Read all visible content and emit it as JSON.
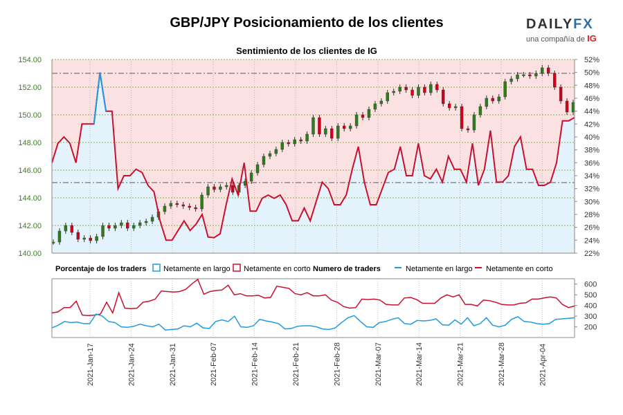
{
  "title": "GBP/JPY Posicionamiento de los clientes",
  "logo": {
    "brand_main": "DAILY",
    "brand_fx": "FX",
    "tagline": "una compañía de",
    "tagline_brand": "IG"
  },
  "chart_data": {
    "type": "line",
    "title": "Sentimiento de los clientes de IG",
    "price_axis": {
      "min": 140,
      "max": 154,
      "ticks": [
        "140.00",
        "142.00",
        "144.00",
        "146.00",
        "148.00",
        "150.00",
        "152.00",
        "154.00"
      ]
    },
    "pct_axis": {
      "min": 22,
      "max": 52,
      "ticks": [
        "22%",
        "24%",
        "26%",
        "28%",
        "30%",
        "32%",
        "34%",
        "36%",
        "38%",
        "40%",
        "42%",
        "44%",
        "46%",
        "48%",
        "50%",
        "52%"
      ]
    },
    "traders_axis": {
      "min": 100,
      "max": 650,
      "ticks": [
        "200",
        "300",
        "400",
        "500",
        "600"
      ]
    },
    "ref_lines": [
      153.0,
      145.1
    ],
    "legend_pct": {
      "title": "Porcentaje de los traders",
      "long": "Netamente en largo",
      "short": "Netamente en corto"
    },
    "legend_traders": {
      "title": "Numero de traders",
      "long": "Netamente en largo",
      "short": "Netamente en corto"
    },
    "colors": {
      "long": "#1e9be0",
      "short": "#c8102e",
      "up": "#2e7d1b",
      "down": "#d0021b",
      "long_bg": "#e4f2fb",
      "short_bg": "#fbe1e1"
    },
    "x_labels": [
      "2021-Jan-17",
      "2021-Jan-24",
      "2021-Jan-31",
      "2021-Feb-07",
      "2021-Feb-14",
      "2021-Feb-21",
      "2021-Feb-28",
      "2021-Mar-07",
      "2021-Mar-14",
      "2021-Mar-21",
      "2021-Mar-28",
      "2021-Apr-04"
    ],
    "net_short_pct": [
      36,
      39,
      40,
      39,
      36,
      42,
      42,
      42,
      50,
      44,
      44,
      32,
      34,
      34,
      35,
      34.5,
      32.5,
      31.5,
      27,
      24,
      24,
      25.5,
      27,
      25.5,
      26.5,
      28,
      24.5,
      24.4,
      25,
      29.5,
      33.5,
      31,
      36,
      28.5,
      28.5,
      30.5,
      31,
      30.5,
      31,
      29.5,
      27,
      27,
      29,
      27,
      30,
      33,
      32,
      29.5,
      29.5,
      31,
      35,
      38.5,
      33,
      29.5,
      29.5,
      32,
      34.5,
      35,
      38.5,
      34,
      34,
      39,
      34,
      33.5,
      35,
      33,
      37,
      35,
      35,
      33,
      39,
      32.5,
      35,
      41,
      33,
      33,
      34,
      38.5,
      40,
      35,
      35,
      32.5,
      32.5,
      33,
      36,
      42.5,
      42.5,
      43
    ],
    "long_count": [
      190,
      215,
      250,
      240,
      245,
      230,
      230,
      320,
      300,
      250,
      240,
      200,
      195,
      205,
      225,
      210,
      200,
      225,
      170,
      175,
      180,
      210,
      200,
      235,
      190,
      185,
      250,
      265,
      250,
      300,
      200,
      195,
      210,
      270,
      255,
      245,
      230,
      180,
      185,
      205,
      210,
      210,
      200,
      180,
      175,
      190,
      240,
      285,
      305,
      250,
      200,
      195,
      240,
      250,
      270,
      285,
      230,
      225,
      260,
      255,
      260,
      275,
      220,
      215,
      265,
      225,
      285,
      210,
      230,
      285,
      215,
      200,
      215,
      270,
      295,
      250,
      245,
      230,
      225,
      230,
      270,
      275,
      280,
      285
    ],
    "short_count": [
      330,
      340,
      380,
      380,
      440,
      310,
      305,
      310,
      320,
      430,
      330,
      520,
      375,
      370,
      375,
      430,
      440,
      460,
      535,
      530,
      525,
      530,
      550,
      600,
      645,
      505,
      530,
      540,
      545,
      590,
      500,
      510,
      490,
      490,
      495,
      470,
      475,
      580,
      570,
      560,
      510,
      500,
      520,
      490,
      490,
      500,
      450,
      430,
      390,
      375,
      380,
      460,
      455,
      460,
      450,
      410,
      405,
      405,
      470,
      475,
      455,
      420,
      420,
      420,
      470,
      500,
      480,
      500,
      410,
      410,
      395,
      450,
      445,
      430,
      410,
      405,
      405,
      420,
      425,
      460,
      460,
      470,
      480,
      470,
      410,
      380,
      395
    ]
  }
}
